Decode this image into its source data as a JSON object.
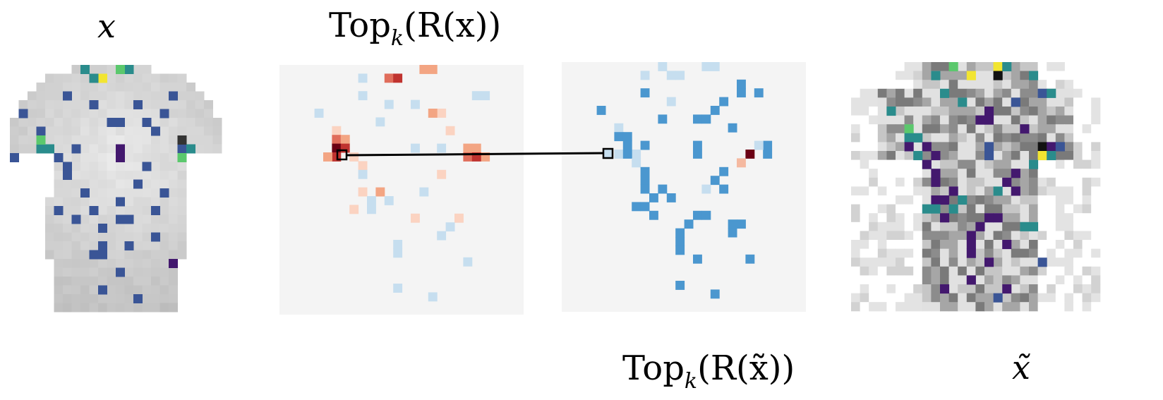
{
  "labels": {
    "x": "x",
    "topk_x_prefix": "Top",
    "topk_x_sub": "k",
    "topk_x_arg": "(R(x))",
    "topk_xt_prefix": "Top",
    "topk_xt_sub": "k",
    "topk_xt_arg": "(R(x̃))",
    "x_tilde": "x̃"
  },
  "colors": {
    "panel_bg": "#f4f4f4",
    "red_strong": "#c0332f",
    "red_dark": "#6b0014",
    "blue_medium": "#4b97cf",
    "blue_light": "#c6deef",
    "navy": "#3a5596",
    "purple": "#43186e",
    "teal": "#2a8c8c",
    "green": "#5bc86d",
    "yellow": "#f2e531",
    "shirt_gray": "#c8c8c8"
  },
  "panels": [
    {
      "name": "input-image"
    },
    {
      "name": "topk-relevance-input"
    },
    {
      "name": "topk-relevance-adversarial"
    },
    {
      "name": "adversarial-image"
    }
  ]
}
